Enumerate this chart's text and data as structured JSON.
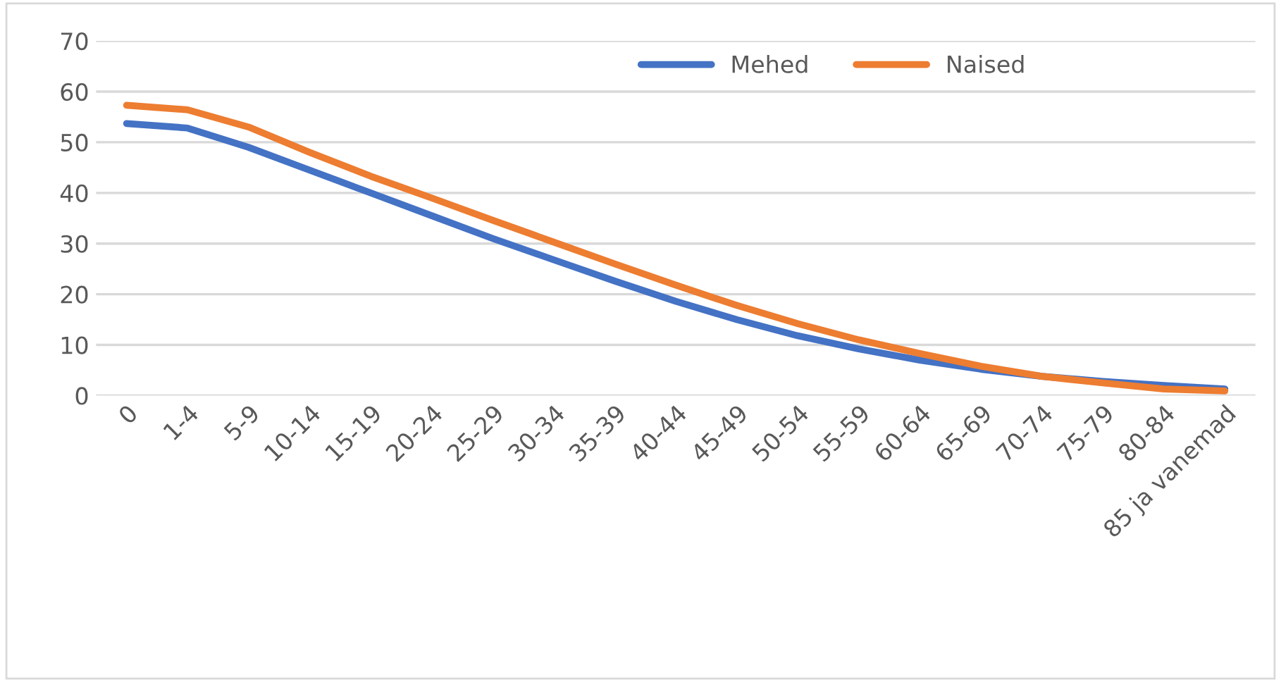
{
  "chart_data": {
    "type": "line",
    "categories": [
      "0",
      "1-4",
      "5-9",
      "10-14",
      "15-19",
      "20-24",
      "25-29",
      "30-34",
      "35-39",
      "40-44",
      "45-49",
      "50-54",
      "55-59",
      "60-64",
      "65-69",
      "70-74",
      "75-79",
      "80-84",
      "85 ja vanemad"
    ],
    "series": [
      {
        "name": "Mehed",
        "color": "#4472c4",
        "values": [
          53.7,
          52.8,
          49,
          44.5,
          40,
          35.5,
          31,
          26.8,
          22.6,
          18.6,
          15,
          11.8,
          9.2,
          7,
          5.2,
          3.8,
          2.8,
          2,
          1.3
        ]
      },
      {
        "name": "Naised",
        "color": "#ed7d31",
        "values": [
          57.3,
          56.4,
          53,
          48,
          43.3,
          39,
          34.6,
          30.3,
          26,
          21.8,
          17.8,
          14.2,
          11,
          8.3,
          5.8,
          3.8,
          2.5,
          1.3,
          0.9
        ]
      }
    ],
    "ylim": [
      0,
      70
    ],
    "yticks": [
      0,
      10,
      20,
      30,
      40,
      50,
      60,
      70
    ],
    "grid": "y",
    "legend": "top right",
    "marker": "none",
    "line_style": "solid"
  }
}
